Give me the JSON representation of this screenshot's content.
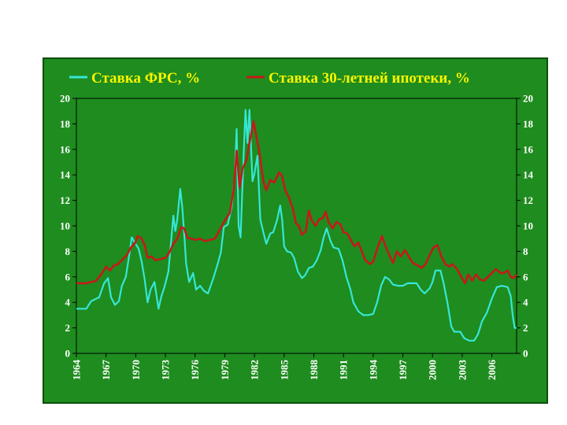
{
  "chart_data": {
    "type": "line",
    "title": "",
    "xlabel": "",
    "ylabel": "",
    "xlim": [
      1964,
      2008.5
    ],
    "ylim": [
      0,
      20
    ],
    "x_ticks": [
      "1964",
      "1967",
      "1970",
      "1973",
      "1976",
      "1979",
      "1982",
      "1985",
      "1988",
      "1991",
      "1994",
      "1997",
      "2000",
      "2003",
      "2006"
    ],
    "y_ticks": [
      "0",
      "2",
      "4",
      "6",
      "8",
      "10",
      "12",
      "14",
      "16",
      "18",
      "20"
    ],
    "grid": false,
    "legend_position": "top",
    "series": [
      {
        "name": "Ставка ФРС, %",
        "color": "#36e6d8",
        "points": [
          [
            1964.0,
            3.5
          ],
          [
            1965.0,
            3.5
          ],
          [
            1965.5,
            4.1
          ],
          [
            1966.3,
            4.4
          ],
          [
            1966.8,
            5.5
          ],
          [
            1967.2,
            5.9
          ],
          [
            1967.5,
            4.4
          ],
          [
            1967.9,
            3.8
          ],
          [
            1968.3,
            4.1
          ],
          [
            1968.6,
            5.3
          ],
          [
            1969.0,
            6.0
          ],
          [
            1969.3,
            7.5
          ],
          [
            1969.6,
            9.1
          ],
          [
            1969.9,
            8.7
          ],
          [
            1970.3,
            8.2
          ],
          [
            1970.6,
            7.2
          ],
          [
            1970.9,
            5.8
          ],
          [
            1971.2,
            4.0
          ],
          [
            1971.5,
            5.0
          ],
          [
            1971.9,
            5.6
          ],
          [
            1972.3,
            3.5
          ],
          [
            1972.6,
            4.5
          ],
          [
            1972.9,
            5.2
          ],
          [
            1973.3,
            6.4
          ],
          [
            1973.6,
            9.0
          ],
          [
            1973.8,
            10.8
          ],
          [
            1974.0,
            9.6
          ],
          [
            1974.2,
            10.5
          ],
          [
            1974.5,
            12.9
          ],
          [
            1974.7,
            11.5
          ],
          [
            1974.9,
            9.4
          ],
          [
            1975.1,
            7.0
          ],
          [
            1975.4,
            5.6
          ],
          [
            1975.8,
            6.3
          ],
          [
            1976.1,
            5.0
          ],
          [
            1976.5,
            5.3
          ],
          [
            1976.9,
            4.9
          ],
          [
            1977.3,
            4.7
          ],
          [
            1977.8,
            5.8
          ],
          [
            1978.2,
            6.8
          ],
          [
            1978.6,
            7.9
          ],
          [
            1978.9,
            9.9
          ],
          [
            1979.3,
            10.1
          ],
          [
            1979.7,
            11.5
          ],
          [
            1980.0,
            13.8
          ],
          [
            1980.2,
            17.6
          ],
          [
            1980.4,
            10.0
          ],
          [
            1980.6,
            9.1
          ],
          [
            1980.9,
            15.5
          ],
          [
            1981.1,
            19.1
          ],
          [
            1981.3,
            16.5
          ],
          [
            1981.5,
            19.1
          ],
          [
            1981.8,
            13.5
          ],
          [
            1982.0,
            14.1
          ],
          [
            1982.3,
            15.5
          ],
          [
            1982.6,
            10.5
          ],
          [
            1982.9,
            9.5
          ],
          [
            1983.2,
            8.6
          ],
          [
            1983.6,
            9.4
          ],
          [
            1983.9,
            9.5
          ],
          [
            1984.3,
            10.5
          ],
          [
            1984.6,
            11.6
          ],
          [
            1984.8,
            10.5
          ],
          [
            1985.0,
            8.4
          ],
          [
            1985.3,
            8.0
          ],
          [
            1985.7,
            7.9
          ],
          [
            1986.0,
            7.5
          ],
          [
            1986.4,
            6.4
          ],
          [
            1986.8,
            5.9
          ],
          [
            1987.1,
            6.1
          ],
          [
            1987.5,
            6.7
          ],
          [
            1987.9,
            6.8
          ],
          [
            1988.3,
            7.3
          ],
          [
            1988.7,
            8.1
          ],
          [
            1989.0,
            9.1
          ],
          [
            1989.3,
            9.8
          ],
          [
            1989.7,
            8.8
          ],
          [
            1990.0,
            8.3
          ],
          [
            1990.5,
            8.2
          ],
          [
            1990.9,
            7.3
          ],
          [
            1991.3,
            6.0
          ],
          [
            1991.7,
            5.0
          ],
          [
            1992.0,
            4.0
          ],
          [
            1992.5,
            3.3
          ],
          [
            1993.0,
            3.0
          ],
          [
            1993.5,
            3.0
          ],
          [
            1994.0,
            3.1
          ],
          [
            1994.4,
            4.0
          ],
          [
            1994.8,
            5.3
          ],
          [
            1995.2,
            6.0
          ],
          [
            1995.6,
            5.8
          ],
          [
            1996.0,
            5.4
          ],
          [
            1996.5,
            5.3
          ],
          [
            1997.0,
            5.3
          ],
          [
            1997.5,
            5.5
          ],
          [
            1998.0,
            5.5
          ],
          [
            1998.4,
            5.5
          ],
          [
            1998.8,
            5.0
          ],
          [
            1999.2,
            4.7
          ],
          [
            1999.7,
            5.1
          ],
          [
            2000.0,
            5.6
          ],
          [
            2000.3,
            6.5
          ],
          [
            2000.8,
            6.5
          ],
          [
            2001.1,
            5.6
          ],
          [
            2001.5,
            4.0
          ],
          [
            2001.9,
            2.1
          ],
          [
            2002.2,
            1.7
          ],
          [
            2002.8,
            1.7
          ],
          [
            2003.2,
            1.2
          ],
          [
            2003.7,
            1.0
          ],
          [
            2004.2,
            1.0
          ],
          [
            2004.6,
            1.5
          ],
          [
            2005.0,
            2.5
          ],
          [
            2005.5,
            3.2
          ],
          [
            2006.0,
            4.3
          ],
          [
            2006.5,
            5.2
          ],
          [
            2007.0,
            5.3
          ],
          [
            2007.6,
            5.2
          ],
          [
            2007.9,
            4.5
          ],
          [
            2008.1,
            3.0
          ],
          [
            2008.3,
            2.0
          ],
          [
            2008.5,
            2.0
          ]
        ]
      },
      {
        "name": "Ставка 30-летней ипотеки, %",
        "color": "#c41a1a",
        "points": [
          [
            1964.0,
            5.5
          ],
          [
            1965.0,
            5.5
          ],
          [
            1966.0,
            5.7
          ],
          [
            1966.6,
            6.3
          ],
          [
            1967.0,
            6.8
          ],
          [
            1967.4,
            6.5
          ],
          [
            1967.8,
            6.9
          ],
          [
            1968.2,
            7.0
          ],
          [
            1968.7,
            7.4
          ],
          [
            1969.1,
            7.7
          ],
          [
            1969.5,
            8.3
          ],
          [
            1969.9,
            8.6
          ],
          [
            1970.2,
            9.2
          ],
          [
            1970.6,
            9.0
          ],
          [
            1970.9,
            8.5
          ],
          [
            1971.2,
            7.5
          ],
          [
            1971.6,
            7.6
          ],
          [
            1972.0,
            7.3
          ],
          [
            1972.5,
            7.4
          ],
          [
            1973.0,
            7.5
          ],
          [
            1973.4,
            7.9
          ],
          [
            1973.8,
            8.6
          ],
          [
            1974.2,
            9.0
          ],
          [
            1974.6,
            9.9
          ],
          [
            1974.9,
            9.8
          ],
          [
            1975.2,
            9.1
          ],
          [
            1975.6,
            9.0
          ],
          [
            1976.0,
            8.9
          ],
          [
            1976.5,
            9.0
          ],
          [
            1977.0,
            8.8
          ],
          [
            1977.5,
            8.9
          ],
          [
            1978.0,
            9.0
          ],
          [
            1978.5,
            9.7
          ],
          [
            1979.0,
            10.4
          ],
          [
            1979.5,
            11.0
          ],
          [
            1979.9,
            12.8
          ],
          [
            1980.2,
            15.9
          ],
          [
            1980.5,
            13.0
          ],
          [
            1980.8,
            14.5
          ],
          [
            1981.2,
            15.2
          ],
          [
            1981.5,
            16.5
          ],
          [
            1981.9,
            18.2
          ],
          [
            1982.2,
            17.0
          ],
          [
            1982.5,
            15.8
          ],
          [
            1982.9,
            13.5
          ],
          [
            1983.2,
            12.8
          ],
          [
            1983.6,
            13.6
          ],
          [
            1984.0,
            13.4
          ],
          [
            1984.5,
            14.2
          ],
          [
            1984.8,
            13.9
          ],
          [
            1985.1,
            12.8
          ],
          [
            1985.5,
            12.2
          ],
          [
            1985.9,
            11.3
          ],
          [
            1986.2,
            10.2
          ],
          [
            1986.5,
            10.0
          ],
          [
            1986.8,
            9.3
          ],
          [
            1987.2,
            9.6
          ],
          [
            1987.5,
            11.2
          ],
          [
            1987.8,
            10.4
          ],
          [
            1988.2,
            10.0
          ],
          [
            1988.5,
            10.5
          ],
          [
            1988.9,
            10.6
          ],
          [
            1989.2,
            11.1
          ],
          [
            1989.5,
            10.3
          ],
          [
            1989.9,
            9.8
          ],
          [
            1990.3,
            10.3
          ],
          [
            1990.7,
            10.1
          ],
          [
            1991.0,
            9.5
          ],
          [
            1991.4,
            9.4
          ],
          [
            1991.8,
            8.8
          ],
          [
            1992.1,
            8.4
          ],
          [
            1992.5,
            8.7
          ],
          [
            1992.8,
            8.1
          ],
          [
            1993.2,
            7.3
          ],
          [
            1993.7,
            7.0
          ],
          [
            1994.0,
            7.2
          ],
          [
            1994.5,
            8.4
          ],
          [
            1994.9,
            9.2
          ],
          [
            1995.3,
            8.3
          ],
          [
            1995.7,
            7.6
          ],
          [
            1996.0,
            7.1
          ],
          [
            1996.4,
            8.0
          ],
          [
            1996.8,
            7.6
          ],
          [
            1997.2,
            8.1
          ],
          [
            1997.6,
            7.6
          ],
          [
            1998.0,
            7.1
          ],
          [
            1998.5,
            6.9
          ],
          [
            1998.9,
            6.7
          ],
          [
            1999.3,
            7.0
          ],
          [
            1999.7,
            7.7
          ],
          [
            2000.1,
            8.3
          ],
          [
            2000.5,
            8.5
          ],
          [
            2000.9,
            7.6
          ],
          [
            2001.3,
            7.0
          ],
          [
            2001.7,
            6.8
          ],
          [
            2002.0,
            7.0
          ],
          [
            2002.4,
            6.7
          ],
          [
            2002.9,
            6.0
          ],
          [
            2003.3,
            5.5
          ],
          [
            2003.6,
            6.2
          ],
          [
            2004.0,
            5.7
          ],
          [
            2004.4,
            6.2
          ],
          [
            2004.8,
            5.8
          ],
          [
            2005.2,
            5.7
          ],
          [
            2005.6,
            6.0
          ],
          [
            2006.0,
            6.3
          ],
          [
            2006.4,
            6.6
          ],
          [
            2006.9,
            6.3
          ],
          [
            2007.2,
            6.3
          ],
          [
            2007.6,
            6.5
          ],
          [
            2007.9,
            6.0
          ],
          [
            2008.2,
            5.9
          ],
          [
            2008.5,
            6.2
          ]
        ]
      }
    ]
  }
}
